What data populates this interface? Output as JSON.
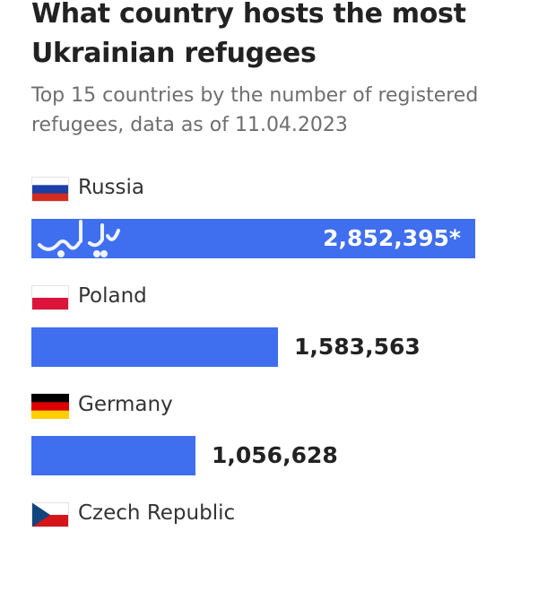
{
  "header": {
    "title": "What country hosts the most Ukrainian refugees",
    "subtitle": "Top 15 countries by the number of registered refugees, data as of 11.04.2023"
  },
  "chart_data": {
    "type": "bar",
    "orientation": "horizontal",
    "categories": [
      "Russia",
      "Poland",
      "Germany",
      "Czech Republic"
    ],
    "values": [
      2852395,
      1583563,
      1056628,
      null
    ],
    "value_labels": [
      "2,852,395*",
      "1,583,563",
      "1,056,628",
      ""
    ],
    "grid": false,
    "legend": "none",
    "bar_color": "#3f6fee"
  },
  "flags": [
    {
      "country": "Russia",
      "colors": [
        "#ffffff",
        "#1c3fa8",
        "#d52b1e"
      ],
      "icon": "russia-flag-icon"
    },
    {
      "country": "Poland",
      "colors": [
        "#ffffff",
        "#dc143c"
      ],
      "icon": "poland-flag-icon"
    },
    {
      "country": "Germany",
      "colors": [
        "#000000",
        "#dd0000",
        "#ffce00"
      ],
      "icon": "germany-flag-icon"
    },
    {
      "country": "Czech Republic",
      "colors": [
        "#ffffff",
        "#d7141a",
        "#11457e"
      ],
      "icon": "czech-flag-icon"
    }
  ]
}
